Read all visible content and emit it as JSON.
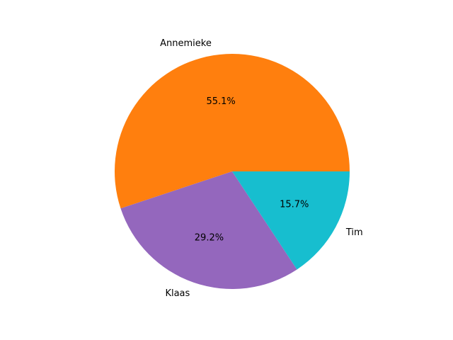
{
  "chart_data": {
    "type": "pie",
    "slices": [
      {
        "label": "Annemieke",
        "value": 55.1,
        "pct_label": "55.1%",
        "color": "#ff7f0e"
      },
      {
        "label": "Klaas",
        "value": 29.2,
        "pct_label": "29.2%",
        "color": "#9467bd"
      },
      {
        "label": "Tim",
        "value": 15.7,
        "pct_label": "15.7%",
        "color": "#17becf"
      }
    ],
    "start_angle_deg": 0,
    "direction": "counterclockwise",
    "legend": "none"
  }
}
